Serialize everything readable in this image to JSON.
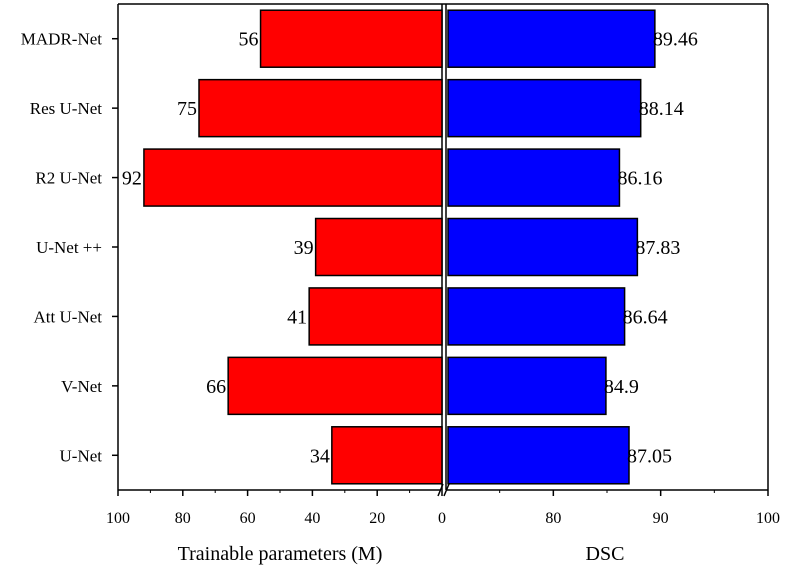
{
  "chart_data": {
    "type": "bar",
    "orientation": "horizontal-diverging",
    "categories": [
      "MADR-Net",
      "Res U-Net",
      "R2 U-Net",
      "U-Net ++",
      "Att U-Net",
      "V-Net",
      "U-Net"
    ],
    "series": [
      {
        "name": "Trainable parameters (M)",
        "side": "left",
        "color": "#ff0000",
        "values": [
          56,
          75,
          92,
          39,
          41,
          66,
          34
        ],
        "labels": [
          "56",
          "75",
          "92",
          "39",
          "41",
          "66",
          "34"
        ],
        "xlim": [
          100,
          0
        ],
        "ticks": [
          "100",
          "80",
          "60",
          "40",
          "20",
          "0"
        ],
        "xlabel": "Trainable parameters (M)"
      },
      {
        "name": "DSC",
        "side": "right",
        "color": "#0000ff",
        "values": [
          89.46,
          88.14,
          86.16,
          87.83,
          86.64,
          84.9,
          87.05
        ],
        "labels": [
          "89.46",
          "88.14",
          "86.16",
          "87.83",
          "86.64",
          "84.9",
          "87.05"
        ],
        "xlim": [
          70,
          100
        ],
        "axis_break": true,
        "ticks": [
          "0",
          "80",
          "90",
          "100"
        ],
        "xlabel": "DSC"
      }
    ]
  }
}
